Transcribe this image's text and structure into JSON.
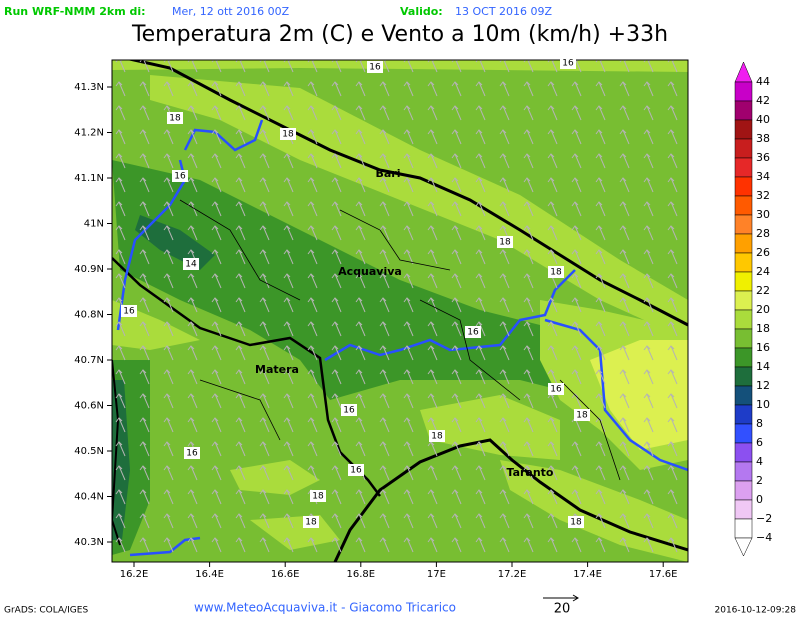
{
  "header": {
    "run_label": "Run WRF-NMM 2km di:",
    "run_date": "Mer, 12 ott 2016 00Z",
    "valid_label": "Valido:",
    "valid_date": "13 OCT 2016 09Z",
    "title": "Temperatura 2m (C) e Vento a 10m (km/h) +33h"
  },
  "map": {
    "lat_labels": [
      "41.3N",
      "41.2N",
      "41.1N",
      "41N",
      "40.9N",
      "40.8N",
      "40.7N",
      "40.6N",
      "40.5N",
      "40.4N",
      "40.3N"
    ],
    "lon_labels": [
      "16.2E",
      "16.4E",
      "16.6E",
      "16.8E",
      "17E",
      "17.2E",
      "17.4E",
      "17.6E"
    ],
    "places": [
      "Bari",
      "Acquaviva",
      "Matera",
      "Taranto"
    ],
    "contour_labels": [
      "16",
      "16",
      "18",
      "18",
      "16",
      "18",
      "14",
      "18",
      "16",
      "16",
      "16",
      "18",
      "16",
      "18",
      "16",
      "16",
      "18",
      "18",
      "18"
    ]
  },
  "colorbar": [
    {
      "label": "44",
      "color": "#f01ef0"
    },
    {
      "label": "42",
      "color": "#c800c8"
    },
    {
      "label": "40",
      "color": "#a0006e"
    },
    {
      "label": "38",
      "color": "#a01414"
    },
    {
      "label": "36",
      "color": "#c81e1e"
    },
    {
      "label": "34",
      "color": "#e62828"
    },
    {
      "label": "32",
      "color": "#ff3200"
    },
    {
      "label": "30",
      "color": "#ff5a00"
    },
    {
      "label": "28",
      "color": "#ff8228"
    },
    {
      "label": "26",
      "color": "#ffa000"
    },
    {
      "label": "24",
      "color": "#ffc800"
    },
    {
      "label": "22",
      "color": "#f0f000"
    },
    {
      "label": "20",
      "color": "#dcf050"
    },
    {
      "label": "18",
      "color": "#aadc3c"
    },
    {
      "label": "16",
      "color": "#78be32"
    },
    {
      "label": "14",
      "color": "#3c9628"
    },
    {
      "label": "12",
      "color": "#1e6e3c"
    },
    {
      "label": "10",
      "color": "#14507a"
    },
    {
      "label": "8",
      "color": "#1e3cc8"
    },
    {
      "label": "6",
      "color": "#3250ff"
    },
    {
      "label": "4",
      "color": "#8c50f0"
    },
    {
      "label": "2",
      "color": "#b478f0"
    },
    {
      "label": "0",
      "color": "#dca0f0"
    },
    {
      "label": "−2",
      "color": "#f0c8f5"
    },
    {
      "label": "−4",
      "color": "#ffffff"
    }
  ],
  "footer": {
    "software": "GrADS: COLA/IGES",
    "credit": "www.MeteoAcquaviva.it - Giacomo Tricarico",
    "wind_scale": "20",
    "timestamp": "2016-10-12-09:28"
  }
}
